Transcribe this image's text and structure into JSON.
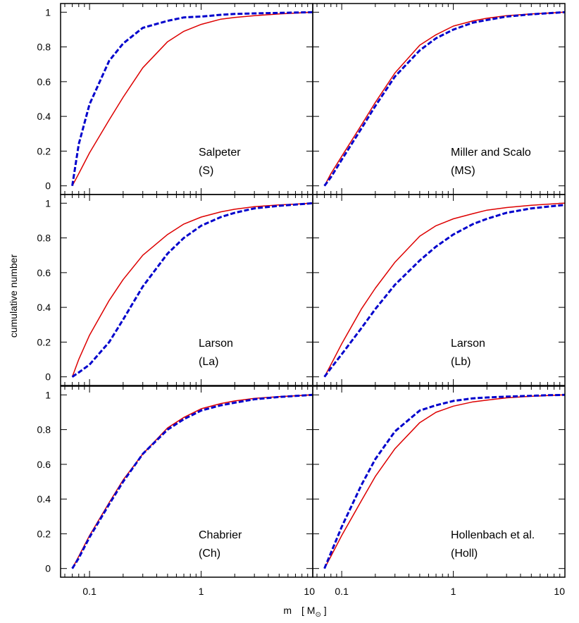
{
  "chart_data": {
    "type": "line",
    "layout": "3x2 panel grid, shared axes",
    "xlabel": "m",
    "xunit_prefix": "[ M",
    "xunit_suffix": " ]",
    "sun_symbol": "⊙",
    "ylabel": "cumulative number",
    "xscale": "log",
    "xlim": [
      0.055,
      10
    ],
    "ylim": [
      -0.05,
      1.05
    ],
    "x_ticks": [
      0.1,
      1,
      10
    ],
    "x_tick_labels": [
      "0.1",
      "1",
      "10"
    ],
    "y_ticks": [
      0,
      0.2,
      0.4,
      0.6,
      0.8,
      1
    ],
    "y_tick_labels": [
      "0",
      "0.2",
      "0.4",
      "0.6",
      "0.8",
      "1"
    ],
    "colors": {
      "solid": "#dd0000",
      "dashed": "#0000cc"
    },
    "x": [
      0.07,
      0.08,
      0.1,
      0.15,
      0.2,
      0.3,
      0.5,
      0.7,
      1,
      1.5,
      2,
      3,
      5,
      7,
      10
    ],
    "panels": [
      {
        "name_line1": "Salpeter",
        "name_line2": "(S)",
        "series": [
          {
            "style": "solid",
            "values": [
              0,
              0.07,
              0.19,
              0.38,
              0.51,
              0.68,
              0.83,
              0.89,
              0.93,
              0.96,
              0.97,
              0.98,
              0.99,
              0.995,
              1.0
            ]
          },
          {
            "style": "dashed",
            "values": [
              0,
              0.24,
              0.47,
              0.72,
              0.82,
              0.91,
              0.95,
              0.97,
              0.975,
              0.985,
              0.99,
              0.993,
              0.996,
              0.998,
              1.0
            ]
          }
        ]
      },
      {
        "name_line1": "Miller and Scalo",
        "name_line2": "(MS)",
        "series": [
          {
            "style": "solid",
            "values": [
              0,
              0.07,
              0.17,
              0.35,
              0.48,
              0.65,
              0.81,
              0.87,
              0.92,
              0.95,
              0.965,
              0.98,
              0.99,
              0.995,
              1.0
            ]
          },
          {
            "style": "dashed",
            "values": [
              0,
              0.05,
              0.15,
              0.33,
              0.46,
              0.63,
              0.78,
              0.85,
              0.9,
              0.94,
              0.955,
              0.975,
              0.988,
              0.994,
              1.0
            ]
          }
        ]
      },
      {
        "name_line1": "Larson",
        "name_line2": "(La)",
        "series": [
          {
            "style": "solid",
            "values": [
              0,
              0.1,
              0.24,
              0.44,
              0.56,
              0.7,
              0.82,
              0.88,
              0.92,
              0.95,
              0.965,
              0.98,
              0.99,
              0.995,
              1.0
            ]
          },
          {
            "style": "dashed",
            "values": [
              0,
              0.025,
              0.07,
              0.2,
              0.33,
              0.52,
              0.71,
              0.8,
              0.87,
              0.92,
              0.945,
              0.97,
              0.985,
              0.992,
              1.0
            ]
          }
        ]
      },
      {
        "name_line1": "Larson",
        "name_line2": "(Lb)",
        "series": [
          {
            "style": "solid",
            "values": [
              0,
              0.07,
              0.19,
              0.39,
              0.51,
              0.66,
              0.81,
              0.87,
              0.91,
              0.94,
              0.96,
              0.975,
              0.988,
              0.994,
              1.0
            ]
          },
          {
            "style": "dashed",
            "values": [
              0,
              0.05,
              0.13,
              0.28,
              0.39,
              0.53,
              0.67,
              0.75,
              0.82,
              0.88,
              0.91,
              0.945,
              0.97,
              0.98,
              0.99
            ]
          }
        ]
      },
      {
        "name_line1": "Chabrier",
        "name_line2": "(Ch)",
        "series": [
          {
            "style": "solid",
            "values": [
              0,
              0.07,
              0.19,
              0.38,
              0.51,
              0.66,
              0.81,
              0.87,
              0.92,
              0.95,
              0.965,
              0.98,
              0.99,
              0.995,
              1.0
            ]
          },
          {
            "style": "dashed",
            "values": [
              0,
              0.06,
              0.18,
              0.37,
              0.5,
              0.66,
              0.8,
              0.86,
              0.91,
              0.94,
              0.955,
              0.975,
              0.988,
              0.994,
              1.0
            ]
          }
        ]
      },
      {
        "name_line1": "Hollenbach et al.",
        "name_line2": "(Holl)",
        "series": [
          {
            "style": "solid",
            "values": [
              0,
              0.07,
              0.19,
              0.39,
              0.53,
              0.69,
              0.84,
              0.9,
              0.935,
              0.96,
              0.97,
              0.983,
              0.992,
              0.996,
              1.0
            ]
          },
          {
            "style": "dashed",
            "values": [
              0,
              0.09,
              0.24,
              0.48,
              0.63,
              0.79,
              0.91,
              0.94,
              0.965,
              0.98,
              0.985,
              0.99,
              0.995,
              0.998,
              1.0
            ]
          }
        ]
      }
    ]
  }
}
